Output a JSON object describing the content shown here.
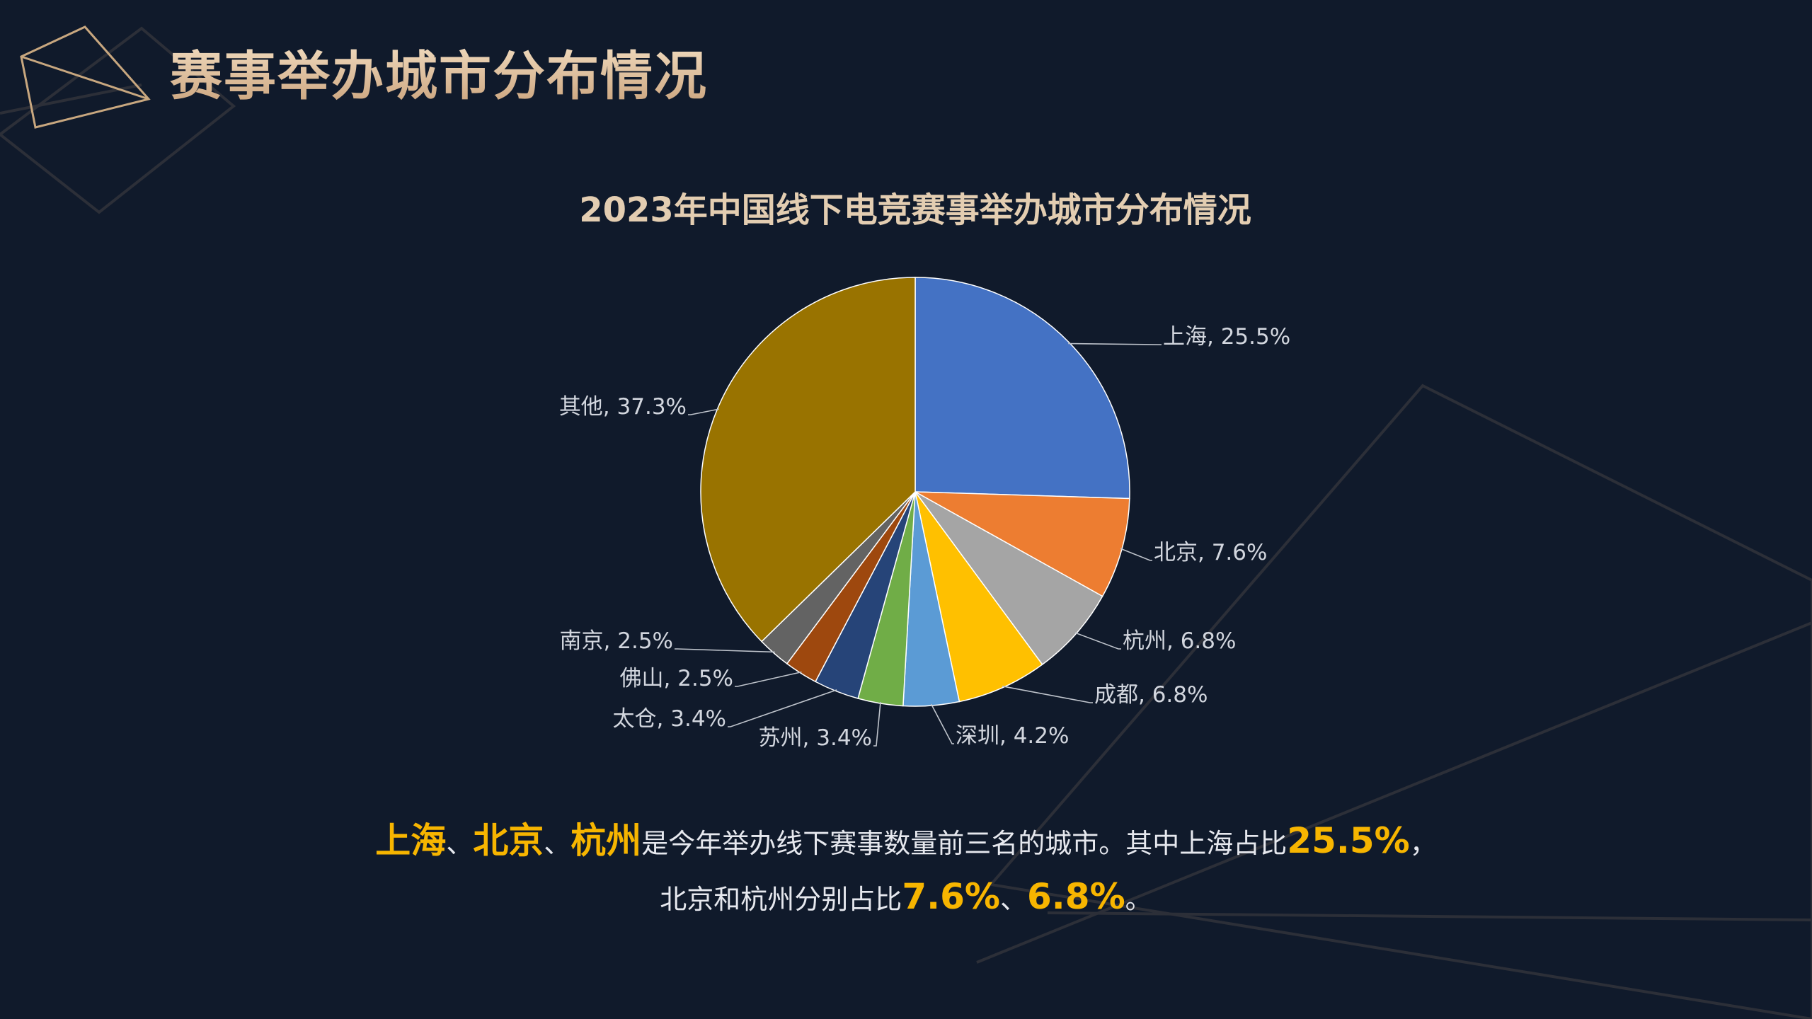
{
  "page": {
    "title": "赛事举办城市分布情况",
    "background": "#101a2b",
    "accent": "#f7b500"
  },
  "chart_data": {
    "type": "pie",
    "title": "2023年中国线下电竞赛事举办城市分布情况",
    "label_format": "{name}, {value}%",
    "start_angle_deg": 0,
    "direction": "clockwise",
    "slices": [
      {
        "name": "上海",
        "value": 25.5,
        "color": "#4472c4"
      },
      {
        "name": "北京",
        "value": 7.6,
        "color": "#ed7d31"
      },
      {
        "name": "杭州",
        "value": 6.8,
        "color": "#a5a5a5"
      },
      {
        "name": "成都",
        "value": 6.8,
        "color": "#ffc000"
      },
      {
        "name": "深圳",
        "value": 4.2,
        "color": "#5b9bd5"
      },
      {
        "name": "苏州",
        "value": 3.4,
        "color": "#70ad47"
      },
      {
        "name": "太仓",
        "value": 3.4,
        "color": "#264478"
      },
      {
        "name": "佛山",
        "value": 2.5,
        "color": "#9e480e"
      },
      {
        "name": "南京",
        "value": 2.5,
        "color": "#636363"
      },
      {
        "name": "其他",
        "value": 37.3,
        "color": "#997300"
      }
    ]
  },
  "summary": {
    "line1": [
      {
        "text": "上海",
        "highlight": true
      },
      {
        "text": "、",
        "highlight": false
      },
      {
        "text": "北京",
        "highlight": true
      },
      {
        "text": "、",
        "highlight": false
      },
      {
        "text": "杭州",
        "highlight": true
      },
      {
        "text": "是今年举办线下赛事数量前三名的城市。其中上海占比",
        "highlight": false
      },
      {
        "text": "25.5%",
        "highlight": true
      },
      {
        "text": "，",
        "highlight": false
      }
    ],
    "line2": [
      {
        "text": "北京和杭州分别占比",
        "highlight": false
      },
      {
        "text": "7.6%",
        "highlight": true
      },
      {
        "text": "、",
        "highlight": false
      },
      {
        "text": "6.8%",
        "highlight": true
      },
      {
        "text": "。",
        "highlight": false
      }
    ]
  }
}
